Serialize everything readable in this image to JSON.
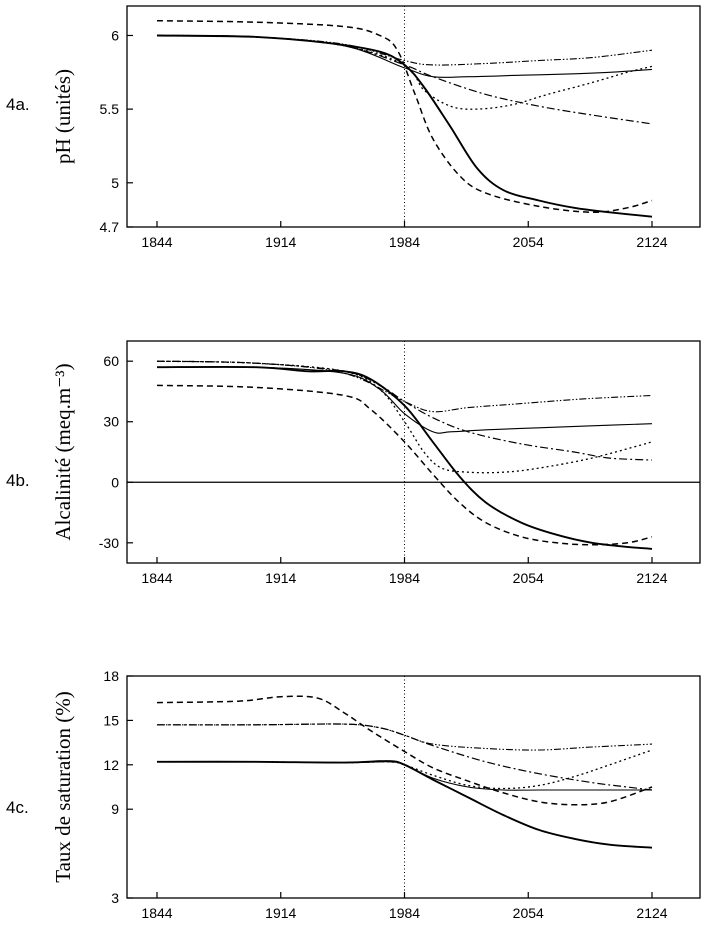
{
  "chart_data": [
    {
      "type": "line",
      "panel_label": "4a.",
      "ylabel": "pH (unités)",
      "xlim": [
        1844,
        2124
      ],
      "ylim": [
        4.7,
        6.2
      ],
      "xticks": [
        1844,
        1914,
        1984,
        2054,
        2124
      ],
      "yticks": [
        4.7,
        5,
        5.5,
        6
      ],
      "ytick_labels": [
        "4.7",
        "5",
        "5.5",
        "6"
      ],
      "marker_x": 1984,
      "series": [
        {
          "style": "solid-bold",
          "x": [
            1844,
            1900,
            1940,
            1970,
            1984,
            1995,
            2010,
            2025,
            2040,
            2060,
            2080,
            2100,
            2124
          ],
          "y": [
            6.0,
            5.99,
            5.95,
            5.89,
            5.8,
            5.65,
            5.38,
            5.1,
            4.95,
            4.88,
            4.83,
            4.8,
            4.77
          ]
        },
        {
          "style": "dashed",
          "x": [
            1844,
            1900,
            1950,
            1970,
            1980,
            1990,
            2000,
            2015,
            2030,
            2060,
            2090,
            2110,
            2124
          ],
          "y": [
            6.1,
            6.09,
            6.06,
            6.0,
            5.9,
            5.6,
            5.3,
            5.05,
            4.93,
            4.84,
            4.8,
            4.83,
            4.88
          ]
        },
        {
          "style": "solid-thin",
          "x": [
            1844,
            1900,
            1950,
            1984,
            2000,
            2020,
            2050,
            2080,
            2100,
            2124
          ],
          "y": [
            6.0,
            5.99,
            5.93,
            5.78,
            5.72,
            5.72,
            5.73,
            5.74,
            5.75,
            5.77
          ]
        },
        {
          "style": "dash-dot",
          "x": [
            1844,
            1900,
            1950,
            1984,
            2000,
            2030,
            2060,
            2090,
            2124
          ],
          "y": [
            6.0,
            5.99,
            5.93,
            5.8,
            5.72,
            5.6,
            5.52,
            5.46,
            5.4
          ]
        },
        {
          "style": "dotted",
          "x": [
            1844,
            1900,
            1950,
            1984,
            1995,
            2010,
            2025,
            2045,
            2065,
            2090,
            2110,
            2124
          ],
          "y": [
            6.0,
            5.99,
            5.93,
            5.8,
            5.63,
            5.52,
            5.5,
            5.53,
            5.6,
            5.68,
            5.75,
            5.79
          ]
        },
        {
          "style": "dash-dot-dot",
          "x": [
            1844,
            1900,
            1950,
            1984,
            2000,
            2030,
            2060,
            2090,
            2124
          ],
          "y": [
            6.0,
            5.99,
            5.94,
            5.83,
            5.8,
            5.81,
            5.83,
            5.85,
            5.9
          ]
        }
      ]
    },
    {
      "type": "line",
      "panel_label": "4b.",
      "ylabel": "Alcalinité (meq.m⁻³)",
      "xlim": [
        1844,
        2124
      ],
      "ylim": [
        -40,
        70
      ],
      "xticks": [
        1844,
        1914,
        1984,
        2054,
        2124
      ],
      "yticks": [
        -30,
        0,
        30,
        60
      ],
      "ytick_labels": [
        "-30",
        "0",
        "30",
        "60"
      ],
      "zero_line": 0,
      "marker_x": 1984,
      "series": [
        {
          "style": "solid-bold",
          "x": [
            1844,
            1900,
            1930,
            1950,
            1965,
            1984,
            2000,
            2015,
            2030,
            2050,
            2070,
            2090,
            2110,
            2124
          ],
          "y": [
            57,
            57,
            55,
            55,
            51,
            38,
            20,
            3,
            -10,
            -20,
            -26,
            -30,
            -32,
            -33
          ]
        },
        {
          "style": "dashed",
          "x": [
            1844,
            1900,
            1950,
            1965,
            1984,
            2000,
            2015,
            2030,
            2050,
            2070,
            2090,
            2110,
            2124
          ],
          "y": [
            48,
            47,
            43,
            36,
            20,
            4,
            -10,
            -20,
            -27,
            -30,
            -31,
            -30,
            -27
          ]
        },
        {
          "style": "solid-thin",
          "x": [
            1844,
            1900,
            1950,
            1970,
            1984,
            2000,
            2010,
            2030,
            2060,
            2090,
            2124
          ],
          "y": [
            57,
            57,
            54,
            46,
            34,
            25,
            25,
            26,
            27,
            28,
            29
          ]
        },
        {
          "style": "dash-dot",
          "x": [
            1844,
            1900,
            1950,
            1970,
            1984,
            2000,
            2020,
            2050,
            2080,
            2100,
            2124
          ],
          "y": [
            60,
            59,
            55,
            48,
            40,
            32,
            25,
            19,
            15,
            12,
            11
          ]
        },
        {
          "style": "dotted",
          "x": [
            1844,
            1900,
            1950,
            1970,
            1984,
            1995,
            2005,
            2020,
            2040,
            2060,
            2090,
            2124
          ],
          "y": [
            60,
            59,
            55,
            46,
            30,
            15,
            7,
            5,
            5,
            7,
            12,
            20
          ]
        },
        {
          "style": "dash-dot-dot",
          "x": [
            1844,
            1900,
            1950,
            1984,
            2000,
            2020,
            2050,
            2080,
            2100,
            2124
          ],
          "y": [
            60,
            59,
            54,
            40,
            35,
            37,
            39,
            41,
            42,
            43
          ]
        }
      ]
    },
    {
      "type": "line",
      "panel_label": "4c.",
      "ylabel": "Taux de saturation (%)",
      "xlim": [
        1844,
        2124
      ],
      "ylim": [
        3,
        18
      ],
      "xticks": [
        1844,
        1914,
        1984,
        2054,
        2124
      ],
      "yticks": [
        3,
        9,
        12,
        15,
        18
      ],
      "ytick_labels": [
        "3",
        "9",
        "12",
        "15",
        "18"
      ],
      "marker_x": 1984,
      "series": [
        {
          "style": "solid-bold",
          "x": [
            1844,
            1900,
            1950,
            1975,
            1984,
            2000,
            2020,
            2040,
            2060,
            2080,
            2100,
            2124
          ],
          "y": [
            12.2,
            12.2,
            12.15,
            12.25,
            12.0,
            11.0,
            9.8,
            8.6,
            7.6,
            7.0,
            6.6,
            6.4
          ]
        },
        {
          "style": "dashed",
          "x": [
            1844,
            1890,
            1914,
            1935,
            1950,
            1965,
            1984,
            2000,
            2020,
            2040,
            2060,
            2080,
            2100,
            2124
          ],
          "y": [
            16.2,
            16.3,
            16.6,
            16.5,
            15.5,
            14.3,
            12.9,
            11.8,
            10.9,
            10.1,
            9.5,
            9.3,
            9.5,
            10.5
          ]
        },
        {
          "style": "solid-thin",
          "x": [
            1844,
            1900,
            1950,
            1975,
            1984,
            2000,
            2020,
            2040,
            2060,
            2090,
            2124
          ],
          "y": [
            12.2,
            12.2,
            12.15,
            12.2,
            12.0,
            11.1,
            10.5,
            10.3,
            10.3,
            10.3,
            10.3
          ]
        },
        {
          "style": "dash-dot",
          "x": [
            1844,
            1900,
            1950,
            1970,
            1984,
            2000,
            2030,
            2060,
            2090,
            2110,
            2124
          ],
          "y": [
            14.7,
            14.7,
            14.75,
            14.5,
            14.0,
            13.3,
            12.2,
            11.4,
            10.8,
            10.5,
            10.3
          ]
        },
        {
          "style": "dotted",
          "x": [
            1844,
            1900,
            1950,
            1975,
            1984,
            2000,
            2020,
            2040,
            2060,
            2080,
            2100,
            2124
          ],
          "y": [
            12.2,
            12.2,
            12.15,
            12.2,
            12.0,
            11.3,
            10.6,
            10.4,
            10.6,
            11.2,
            12.0,
            13.0
          ]
        },
        {
          "style": "dash-dot-dot",
          "x": [
            1844,
            1900,
            1950,
            1970,
            1984,
            2000,
            2030,
            2060,
            2090,
            2124
          ],
          "y": [
            14.7,
            14.7,
            14.75,
            14.5,
            14.0,
            13.4,
            13.1,
            13.0,
            13.2,
            13.4
          ]
        }
      ]
    }
  ]
}
